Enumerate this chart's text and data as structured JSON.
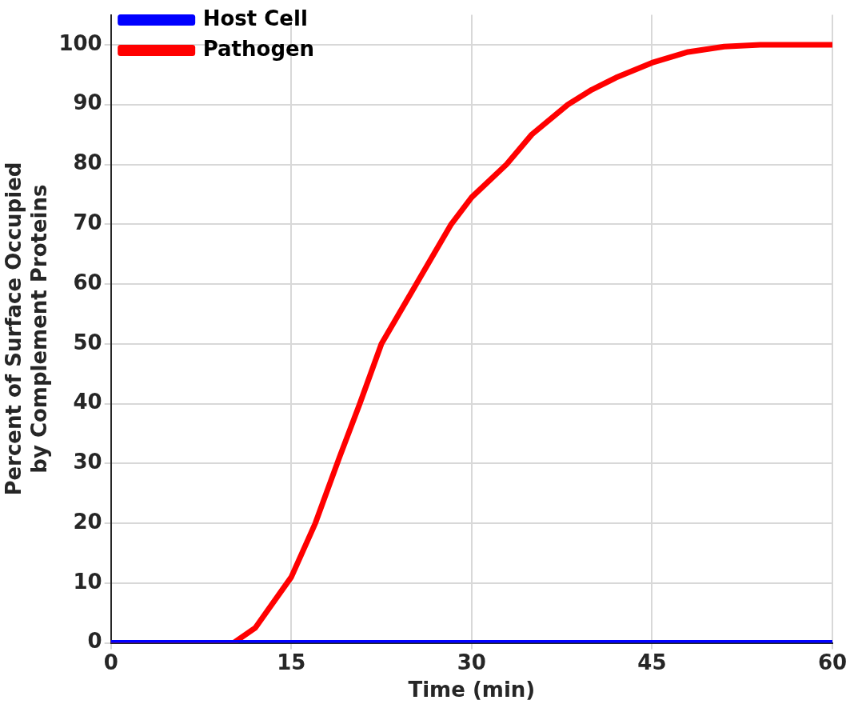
{
  "chart_data": {
    "type": "line",
    "xlabel": "Time (min)",
    "ylabel": "Percent of Surface Occupied\nby Complement Proteins",
    "xlim": [
      0,
      60
    ],
    "xticks": [
      0,
      15,
      30,
      45,
      60
    ],
    "ylim": [
      0,
      105
    ],
    "yticks": [
      0,
      10,
      20,
      30,
      40,
      50,
      60,
      70,
      80,
      90,
      100
    ],
    "grid": true,
    "legend": "top left",
    "marker": "none",
    "line_style": "solid",
    "series": [
      {
        "name": "Host Cell",
        "color": "#0000ff",
        "x": [
          0,
          60
        ],
        "values": [
          0,
          0
        ]
      },
      {
        "name": "Pathogen",
        "color": "#ff0000",
        "x": [
          0,
          10.2,
          12,
          15,
          17,
          19,
          20.7,
          22.5,
          25.4,
          28.3,
          30,
          32.9,
          35,
          38,
          40,
          42,
          45,
          48,
          51,
          54,
          60
        ],
        "values": [
          0,
          0,
          2.5,
          11,
          20,
          31,
          40,
          50,
          60,
          70,
          74.5,
          80,
          85,
          90,
          92.5,
          94.5,
          97,
          98.8,
          99.7,
          100,
          100
        ]
      }
    ]
  }
}
